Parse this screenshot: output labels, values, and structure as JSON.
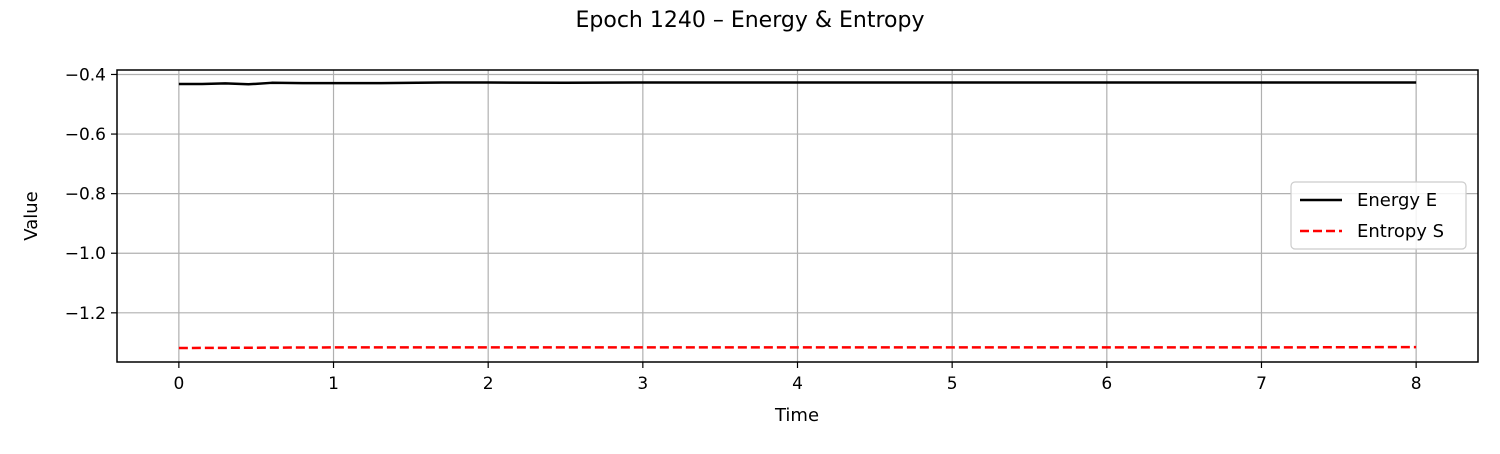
{
  "chart_data": {
    "type": "line",
    "title": "Epoch 1240 – Energy & Entropy",
    "xlabel": "Time",
    "ylabel": "Value",
    "xlim": [
      -0.4,
      8.4
    ],
    "ylim": [
      -1.365,
      -0.385
    ],
    "xticks": [
      0,
      1,
      2,
      3,
      4,
      5,
      6,
      7,
      8
    ],
    "xtick_labels": [
      "0",
      "1",
      "2",
      "3",
      "4",
      "5",
      "6",
      "7",
      "8"
    ],
    "yticks": [
      -0.4,
      -0.6,
      -0.8,
      -1.0,
      -1.2
    ],
    "ytick_labels": [
      "−0.4",
      "−0.6",
      "−0.8",
      "−1.0",
      "−1.2"
    ],
    "grid": true,
    "legend_position": "center-right",
    "series": [
      {
        "name": "Energy E",
        "color": "#000000",
        "style": "solid",
        "x": [
          0,
          0.15,
          0.3,
          0.45,
          0.6,
          0.8,
          1.0,
          1.3,
          1.7,
          2.0,
          2.5,
          3.0,
          4.0,
          5.0,
          6.0,
          7.0,
          8.0
        ],
        "y": [
          -0.432,
          -0.432,
          -0.43,
          -0.433,
          -0.428,
          -0.429,
          -0.429,
          -0.429,
          -0.427,
          -0.427,
          -0.428,
          -0.427,
          -0.427,
          -0.427,
          -0.427,
          -0.427,
          -0.427
        ]
      },
      {
        "name": "Entropy S",
        "color": "#ff0000",
        "style": "dashed",
        "x": [
          0,
          1,
          2,
          3,
          4,
          5,
          6,
          7,
          8
        ],
        "y": [
          -1.318,
          -1.316,
          -1.316,
          -1.316,
          -1.316,
          -1.316,
          -1.316,
          -1.316,
          -1.315
        ]
      }
    ]
  }
}
